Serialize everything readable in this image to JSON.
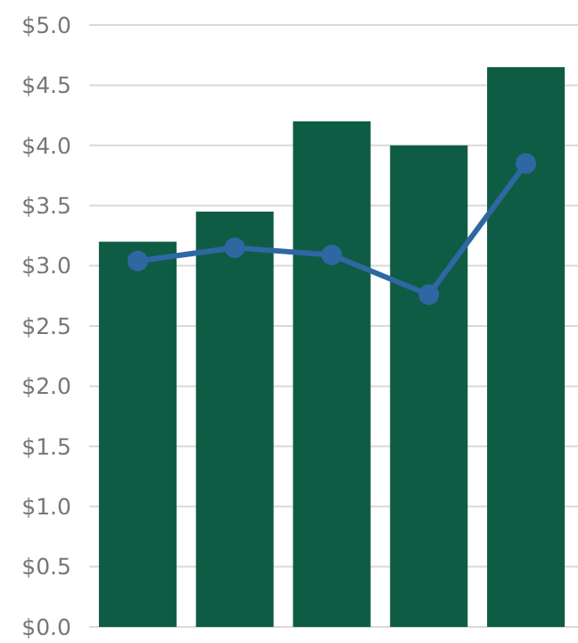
{
  "chart_data": {
    "type": "bar",
    "categories": [
      null,
      null,
      null,
      null,
      null
    ],
    "series": [
      {
        "color": "#0f5c45",
        "values": [
          3.2,
          3.45,
          4.2,
          4.0,
          4.65
        ]
      },
      {
        "type": "line",
        "color": "#2f67a3",
        "values": [
          3.04,
          3.15,
          3.09,
          2.76,
          3.85
        ]
      }
    ],
    "ylim": [
      0,
      5
    ],
    "yticks": [
      {
        "value": 0,
        "label": "$0.0"
      },
      {
        "value": 0.5,
        "label": "$0.5"
      },
      {
        "value": 1,
        "label": "$1.0"
      },
      {
        "value": 1.5,
        "label": "$1.5"
      },
      {
        "value": 2,
        "label": "$2.0"
      },
      {
        "value": 2.5,
        "label": "$2.5"
      },
      {
        "value": 3,
        "label": "$3.0"
      },
      {
        "value": 3.5,
        "label": "$3.5"
      },
      {
        "value": 4,
        "label": "$4.0"
      },
      {
        "value": 4.5,
        "label": "$4.5"
      },
      {
        "value": 5,
        "label": "$5.0"
      }
    ],
    "grid": "y",
    "marker": "circle",
    "line_style": "solid"
  }
}
